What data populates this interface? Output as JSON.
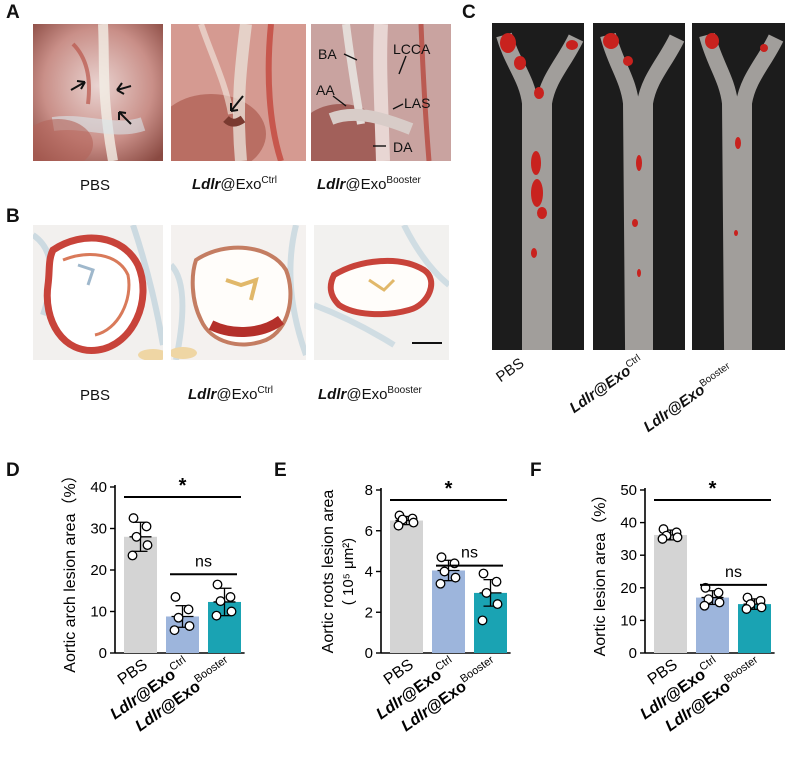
{
  "panels": {
    "A": {
      "label": "A",
      "captions": [
        {
          "pre": "",
          "italic": "",
          "main": "PBS",
          "sup": ""
        },
        {
          "pre": "",
          "italic": "Ldlr",
          "main": "@Exo",
          "sup": "Ctrl"
        },
        {
          "pre": "",
          "italic": "Ldlr",
          "main": "@Exo",
          "sup": "Booster"
        }
      ],
      "annotations": [
        "BA",
        "LCCA",
        "AA",
        "LAS",
        "DA"
      ]
    },
    "B": {
      "label": "B",
      "captions": [
        {
          "pre": "",
          "italic": "",
          "main": "PBS",
          "sup": ""
        },
        {
          "pre": "",
          "italic": "Ldlr",
          "main": "@Exo",
          "sup": "Ctrl"
        },
        {
          "pre": "",
          "italic": "Ldlr",
          "main": "@Exo",
          "sup": "Booster"
        }
      ]
    },
    "C": {
      "label": "C",
      "captions": [
        {
          "italic": "",
          "main": "PBS",
          "sup": ""
        },
        {
          "italic": "Ldlr",
          "main": "@Exo",
          "sup": "Ctrl"
        },
        {
          "italic": "Ldlr",
          "main": "@Exo",
          "sup": "Booster"
        }
      ]
    }
  },
  "colors": {
    "pbs_bar": "#d4d4d4",
    "ctrl_bar": "#9db5dc",
    "booster_bar": "#1aa3b3",
    "stain_red": "#c8433a",
    "tissue_bg": "#1c1c1c"
  },
  "chart_data": [
    {
      "type": "bar",
      "panel": "D",
      "categories": [
        "PBS",
        "Ldlr@Exo Ctrl",
        "Ldlr@Exo Booster"
      ],
      "values": [
        28,
        8.8,
        12.3
      ],
      "errors": [
        3.5,
        2.6,
        3.3
      ],
      "points": [
        [
          32.5,
          30.5,
          28,
          26,
          23.5
        ],
        [
          13.5,
          10.5,
          8.5,
          6.5,
          5.5
        ],
        [
          16.5,
          13.5,
          12.5,
          10,
          9
        ]
      ],
      "ylabel": "Aortic arch lesion area（%）",
      "ylim": [
        0,
        40
      ],
      "yticks": [
        0,
        10,
        20,
        30,
        40
      ],
      "significance": [
        {
          "pair": [
            0,
            2
          ],
          "label": "*"
        },
        {
          "pair": [
            1,
            2
          ],
          "label": "ns"
        }
      ]
    },
    {
      "type": "bar",
      "panel": "E",
      "categories": [
        "PBS",
        "Ldlr@Exo Ctrl",
        "Ldlr@Exo Booster"
      ],
      "values": [
        6.5,
        4.05,
        2.95
      ],
      "errors": [
        0.2,
        0.5,
        0.65
      ],
      "points": [
        [
          6.75,
          6.6,
          6.55,
          6.4,
          6.25
        ],
        [
          4.7,
          4.4,
          4.0,
          3.7,
          3.4
        ],
        [
          3.9,
          3.5,
          2.95,
          2.4,
          1.6
        ]
      ],
      "ylabel_line1": "Aortic roots lesion area",
      "ylabel_line2": "( 10⁵ μm²)",
      "ylim": [
        0,
        8
      ],
      "yticks": [
        0,
        2,
        4,
        6,
        8
      ],
      "significance": [
        {
          "pair": [
            0,
            2
          ],
          "label": "*"
        },
        {
          "pair": [
            1,
            2
          ],
          "label": "ns"
        }
      ]
    },
    {
      "type": "bar",
      "panel": "F",
      "categories": [
        "PBS",
        "Ldlr@Exo Ctrl",
        "Ldlr@Exo Booster"
      ],
      "values": [
        36.2,
        17,
        15
      ],
      "errors": [
        1.5,
        2.1,
        1.6
      ],
      "points": [
        [
          38,
          37,
          36,
          35.5,
          35
        ],
        [
          20,
          18.5,
          16.5,
          15.5,
          14.5
        ],
        [
          17,
          16,
          15,
          14,
          13.5
        ]
      ],
      "ylabel": "Aortic lesion area（%）",
      "ylim": [
        0,
        50
      ],
      "yticks": [
        0,
        10,
        20,
        30,
        40,
        50
      ],
      "significance": [
        {
          "pair": [
            0,
            2
          ],
          "label": "*"
        },
        {
          "pair": [
            1,
            2
          ],
          "label": "ns"
        }
      ]
    }
  ],
  "chart_labels": {
    "D": "D",
    "E": "E",
    "F": "F",
    "cat_pbs": "PBS",
    "cat_ldlr": "Ldlr",
    "cat_exo": "@Exo",
    "sup_ctrl": "Ctrl",
    "sup_booster": "Booster"
  }
}
